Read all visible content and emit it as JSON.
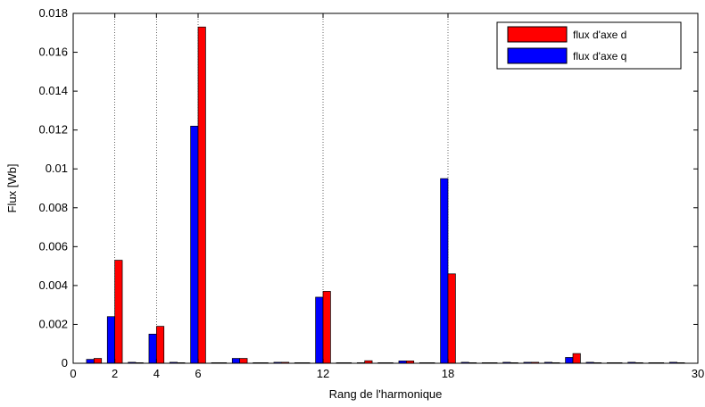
{
  "chart_data": {
    "type": "bar",
    "title": "",
    "xlabel": "Rang de l'harmonique",
    "ylabel": "Flux [Wb]",
    "xlim": [
      0,
      30
    ],
    "ylim": [
      0,
      0.018
    ],
    "x_ticks": [
      0,
      2,
      4,
      6,
      12,
      18,
      30
    ],
    "x_tick_labels": [
      "0",
      "2",
      "4",
      "6",
      "12",
      "18",
      "30"
    ],
    "y_ticks": [
      0,
      0.002,
      0.004,
      0.006,
      0.008,
      0.01,
      0.012,
      0.014,
      0.016,
      0.018
    ],
    "y_tick_labels": [
      "0",
      "0.002",
      "0.004",
      "0.006",
      "0.008",
      "0.01",
      "0.012",
      "0.014",
      "0.016",
      "0.018"
    ],
    "x_grid_at": [
      2,
      4,
      6,
      12,
      18
    ],
    "legend_position": "top-right",
    "x": [
      1,
      2,
      3,
      4,
      5,
      6,
      7,
      8,
      9,
      10,
      11,
      12,
      13,
      14,
      15,
      16,
      17,
      18,
      19,
      20,
      21,
      22,
      23,
      24,
      25,
      26,
      27,
      28,
      29
    ],
    "series": [
      {
        "name": "flux d'axe q",
        "color": "#0000ff",
        "values": [
          0.0002,
          0.0024,
          5e-05,
          0.0015,
          5e-05,
          0.0122,
          3e-05,
          0.00025,
          3e-05,
          5e-05,
          3e-05,
          0.0034,
          3e-05,
          3e-05,
          3e-05,
          0.00012,
          3e-05,
          0.0095,
          5e-05,
          3e-05,
          5e-05,
          5e-05,
          5e-05,
          0.0003,
          5e-05,
          3e-05,
          5e-05,
          3e-05,
          5e-05
        ]
      },
      {
        "name": "flux d'axe d",
        "color": "#ff0000",
        "values": [
          0.00025,
          0.0053,
          3e-05,
          0.0019,
          3e-05,
          0.0173,
          3e-05,
          0.00025,
          3e-05,
          5e-05,
          3e-05,
          0.0037,
          3e-05,
          0.00013,
          3e-05,
          0.00012,
          3e-05,
          0.0046,
          3e-05,
          3e-05,
          3e-05,
          5e-05,
          3e-05,
          0.0005,
          3e-05,
          3e-05,
          3e-05,
          3e-05,
          3e-05
        ]
      }
    ]
  },
  "legend": {
    "entry_d": "flux d'axe d",
    "entry_q": "flux d'axe q"
  }
}
